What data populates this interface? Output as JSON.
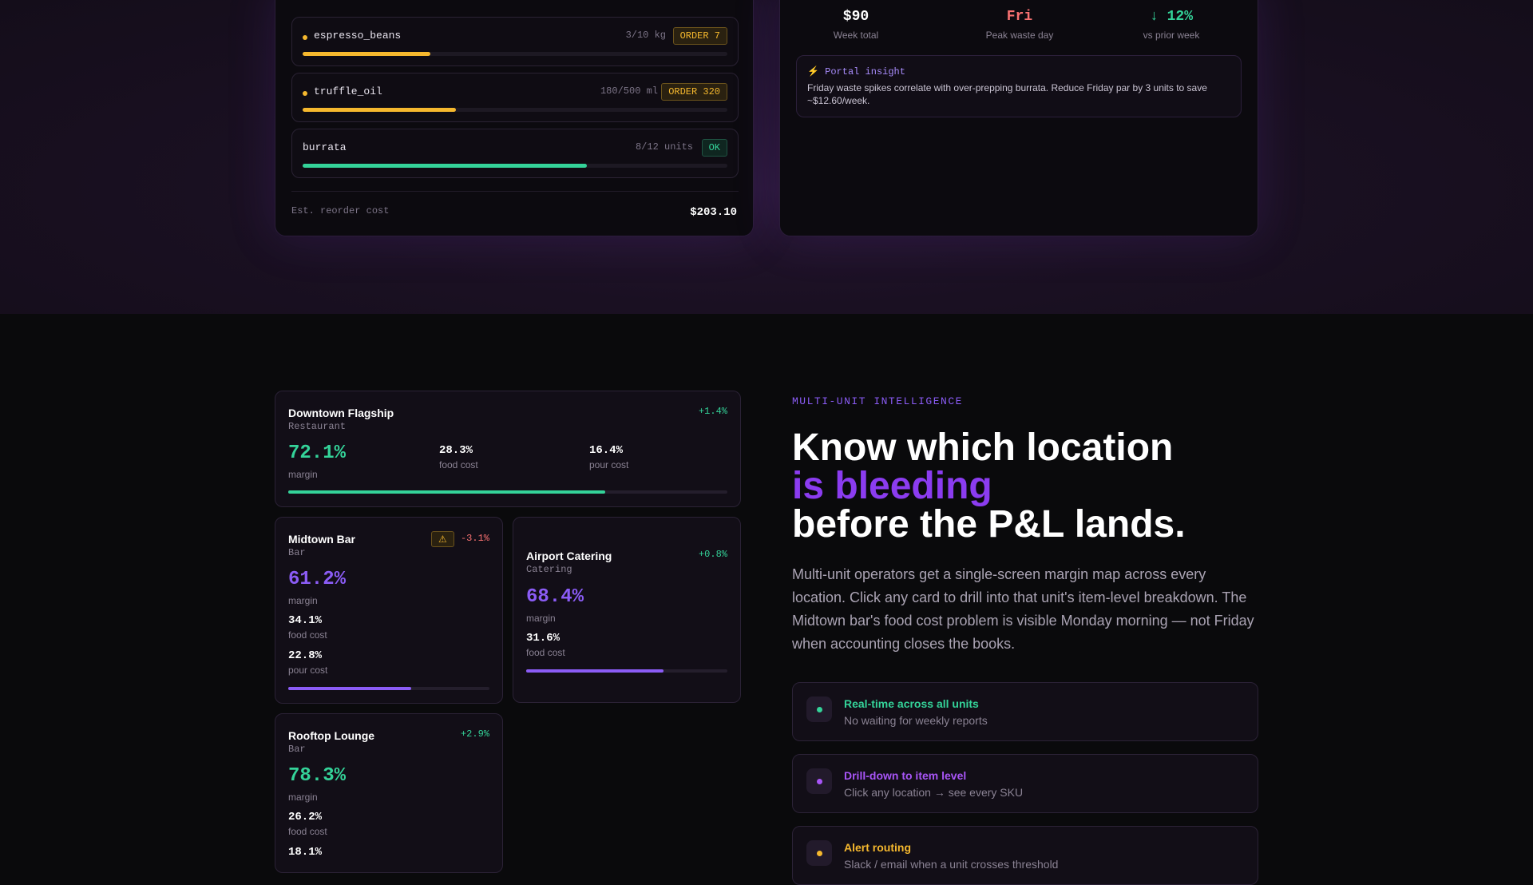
{
  "inventory": {
    "items": [
      {
        "name": "espresso_beans",
        "qty": "3/10 kg",
        "badge": "ORDER 7",
        "level": 0.3
      },
      {
        "name": "truffle_oil",
        "qty": "180/500 ml",
        "badge": "ORDER 320",
        "level": 0.36
      },
      {
        "name": "burrata",
        "qty": "8/12 units",
        "badge": "OK",
        "level": 0.67
      }
    ],
    "est_label": "Est. reorder cost",
    "est_value": "$203.10"
  },
  "waste": {
    "stats": [
      {
        "value": "$90",
        "label": "Week total",
        "color": "#ffffff"
      },
      {
        "value": "Fri",
        "label": "Peak waste day",
        "color": "#f87171"
      },
      {
        "value": "↓ 12%",
        "label": "vs prior week",
        "color": "#34d399"
      }
    ],
    "insight_title": "⚡ Portal insight",
    "insight_body": "Friday waste spikes correlate with over-prepping burrata. Reduce Friday par by 3 units to save ~$12.60/week."
  },
  "locations": [
    {
      "name": "Downtown Flagship",
      "type": "Restaurant",
      "delta": "+1.4%",
      "margin": "72.1%",
      "margin_label": "margin",
      "food": "28.3%",
      "food_label": "food cost",
      "pour": "16.4%",
      "pour_label": "pour cost",
      "level": 0.721
    },
    {
      "name": "Midtown Bar",
      "type": "Bar",
      "delta": "-3.1%",
      "warn": "⚠",
      "margin": "61.2%",
      "margin_label": "margin",
      "food": "34.1%",
      "food_label": "food cost",
      "pour": "22.8%",
      "pour_label": "pour cost",
      "level": 0.612
    },
    {
      "name": "Airport Catering",
      "type": "Catering",
      "delta": "+0.8%",
      "margin": "68.4%",
      "margin_label": "margin",
      "food": "31.6%",
      "food_label": "food cost",
      "level": 0.684
    },
    {
      "name": "Rooftop Lounge",
      "type": "Bar",
      "delta": "+2.9%",
      "margin": "78.3%",
      "margin_label": "margin",
      "food": "26.2%",
      "food_label": "food cost",
      "pour": "18.1%"
    }
  ],
  "copy": {
    "eyebrow": "MULTI-UNIT INTELLIGENCE",
    "headline_1": "Know which location",
    "headline_2": "is bleeding",
    "headline_3": "before the P&L lands.",
    "paragraph": "Multi-unit operators get a single-screen margin map across every location. Click any card to drill into that unit's item-level breakdown. The Midtown bar's food cost problem is visible Monday morning — not Friday when accounting closes the books."
  },
  "features": [
    {
      "title": "Real-time across all units",
      "desc": "No waiting for weekly reports",
      "color": "#34d399"
    },
    {
      "title": "Drill-down to item level",
      "desc": "Click any location → see every SKU",
      "color": "#a855f7"
    },
    {
      "title": "Alert routing",
      "desc": "Slack / email when a unit crosses threshold",
      "color": "#f5b82e"
    }
  ],
  "colors": {
    "green": "#34d399",
    "purple": "#8b5cf6",
    "amber": "#f5b82e",
    "red": "#f87171"
  }
}
